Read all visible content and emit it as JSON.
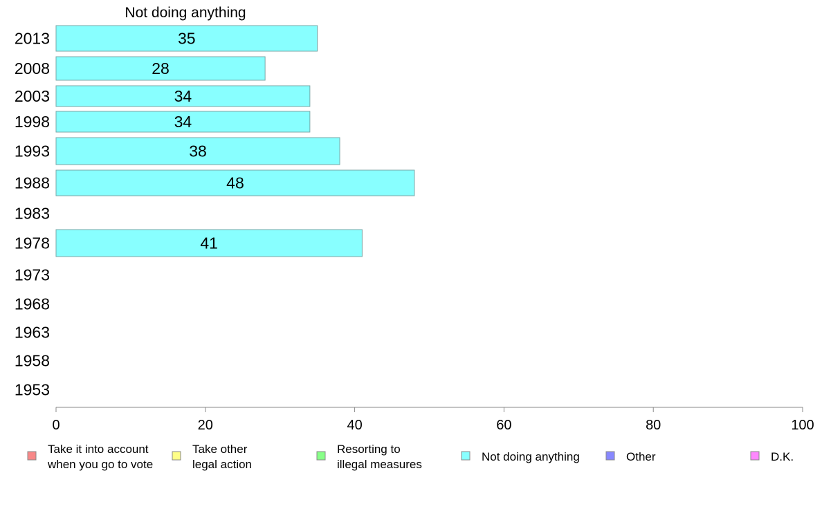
{
  "chart_data": {
    "type": "bar",
    "orientation": "horizontal",
    "title": "Not doing anything",
    "categories": [
      "2013",
      "2008",
      "2003",
      "1998",
      "1993",
      "1988",
      "1983",
      "1978",
      "1973",
      "1968",
      "1963",
      "1958",
      "1953"
    ],
    "series": [
      {
        "name": "Not doing anything",
        "color": "#88ffff",
        "values": [
          35,
          28,
          34,
          34,
          38,
          48,
          null,
          41,
          null,
          null,
          null,
          null,
          null
        ]
      }
    ],
    "xlim": [
      0,
      100
    ],
    "xticks": [
      "0",
      "20",
      "40",
      "60",
      "80",
      "100"
    ],
    "grid": false,
    "legend_position": "bottom",
    "legend": [
      {
        "lines": [
          "Take it into account",
          "when you go to vote"
        ],
        "color": "#f88888"
      },
      {
        "lines": [
          "Take other",
          "legal action"
        ],
        "color": "#ffff88"
      },
      {
        "lines": [
          "Resorting to",
          "illegal measures"
        ],
        "color": "#88ff88"
      },
      {
        "lines": [
          "Not doing anything"
        ],
        "color": "#88ffff"
      },
      {
        "lines": [
          "Other"
        ],
        "color": "#8888ff"
      },
      {
        "lines": [
          "D.K."
        ],
        "color": "#ff88ff"
      }
    ]
  }
}
